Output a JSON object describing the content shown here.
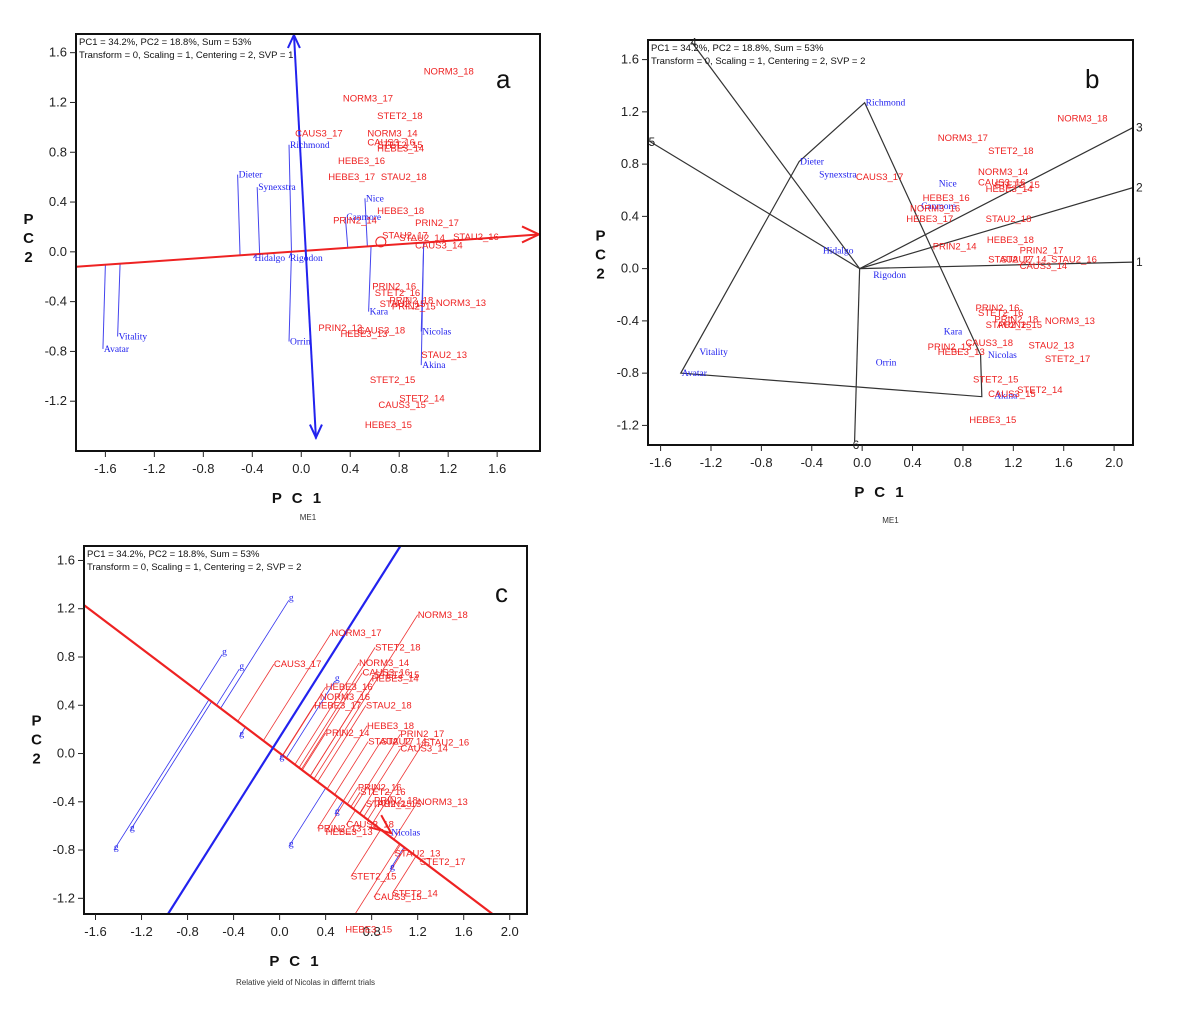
{
  "figure": {
    "common_header_line1": "PC1 = 34.2%, PC2 = 18.8%, Sum = 53%",
    "colors": {
      "environment": "#ee2222",
      "genotype": "#2222ee",
      "axis_vector_a": "#2222ee",
      "polygon": "#333333",
      "aec_abscissa": "#ee2222",
      "aec_ordinate": "#2222ee"
    }
  },
  "chart_data": [
    {
      "type": "scatter",
      "panel": "a",
      "header_line1": "PC1 = 34.2%, PC2 = 18.8%, Sum = 53%",
      "header_line2": "Transform = 0, Scaling = 1, Centering = 2, SVP = 1",
      "xlabel": "P C 1",
      "ylabel": "P C 2",
      "caption": "ME1",
      "xlim": [
        -1.84,
        1.95
      ],
      "ylim": [
        -1.6,
        1.75
      ],
      "xticks": [
        "-1.6",
        "-1.2",
        "-0.8",
        "-0.4",
        "0.0",
        "0.4",
        "0.8",
        "1.2",
        "1.6"
      ],
      "yticks": [
        "1.6",
        "1.2",
        "0.8",
        "0.4",
        "0.0",
        "-0.4",
        "-0.8",
        "-1.2"
      ],
      "xtick_values": [
        -1.6,
        -1.2,
        -0.8,
        -0.4,
        0.0,
        0.4,
        0.8,
        1.2,
        1.6
      ],
      "ytick_values": [
        1.6,
        1.2,
        0.8,
        0.4,
        0.0,
        -0.4,
        -0.8,
        -1.2
      ],
      "genotypes": [
        {
          "name": "Dieter",
          "x": -0.52,
          "y": 0.62
        },
        {
          "name": "Synexstra",
          "x": -0.36,
          "y": 0.52
        },
        {
          "name": "Hidalgo",
          "x": -0.39,
          "y": -0.05
        },
        {
          "name": "Richmond",
          "x": -0.1,
          "y": 0.86
        },
        {
          "name": "Nice",
          "x": 0.52,
          "y": 0.43
        },
        {
          "name": "Canmore",
          "x": 0.36,
          "y": 0.28
        },
        {
          "name": "Rigodon",
          "x": -0.1,
          "y": -0.05
        },
        {
          "name": "Orrin",
          "x": -0.1,
          "y": -0.72
        },
        {
          "name": "Kara",
          "x": 0.55,
          "y": -0.48
        },
        {
          "name": "Nicolas",
          "x": 0.98,
          "y": -0.64
        },
        {
          "name": "Akina",
          "x": 0.98,
          "y": -0.91
        },
        {
          "name": "Vitality",
          "x": -1.5,
          "y": -0.68
        },
        {
          "name": "Avatar",
          "x": -1.62,
          "y": -0.78
        }
      ],
      "environments": [
        {
          "name": "NORM3_18",
          "x": 1.0,
          "y": 1.45
        },
        {
          "name": "NORM3_17",
          "x": 0.34,
          "y": 1.23
        },
        {
          "name": "STET2_18",
          "x": 0.62,
          "y": 1.09
        },
        {
          "name": "CAUS3_17",
          "x": -0.05,
          "y": 0.95
        },
        {
          "name": "NORM3_14",
          "x": 0.54,
          "y": 0.95
        },
        {
          "name": "CAUS3_16",
          "x": 0.54,
          "y": 0.88
        },
        {
          "name": "STET2_15",
          "x": 0.62,
          "y": 0.86
        },
        {
          "name": "HEBE3_14",
          "x": 0.62,
          "y": 0.83
        },
        {
          "name": "HEBE3_16",
          "x": 0.3,
          "y": 0.73
        },
        {
          "name": "HEBE3_17",
          "x": 0.22,
          "y": 0.6
        },
        {
          "name": "STAU2_18",
          "x": 0.65,
          "y": 0.6
        },
        {
          "name": "HEBE3_18",
          "x": 0.62,
          "y": 0.33
        },
        {
          "name": "PRIN2_14",
          "x": 0.26,
          "y": 0.25
        },
        {
          "name": "PRIN2_17",
          "x": 0.93,
          "y": 0.23
        },
        {
          "name": "STAU2_17",
          "x": 0.66,
          "y": 0.13
        },
        {
          "name": "STAU2_14",
          "x": 0.8,
          "y": 0.11
        },
        {
          "name": "STAU2_16",
          "x": 1.24,
          "y": 0.12
        },
        {
          "name": "CAUS3_14",
          "x": 0.93,
          "y": 0.05
        },
        {
          "name": "PRIN2_16",
          "x": 0.58,
          "y": -0.28
        },
        {
          "name": "STET2_16",
          "x": 0.6,
          "y": -0.33
        },
        {
          "name": "PRIN2_18",
          "x": 0.72,
          "y": -0.39
        },
        {
          "name": "STAU2_15",
          "x": 0.64,
          "y": -0.42
        },
        {
          "name": "PRIN2_15",
          "x": 0.74,
          "y": -0.44
        },
        {
          "name": "NORM3_13",
          "x": 1.1,
          "y": -0.41
        },
        {
          "name": "PRIN2_13",
          "x": 0.14,
          "y": -0.61
        },
        {
          "name": "CAUS3_18",
          "x": 0.46,
          "y": -0.63
        },
        {
          "name": "HEBE3_13",
          "x": 0.32,
          "y": -0.66
        },
        {
          "name": "STAU2_13",
          "x": 0.98,
          "y": -0.83
        },
        {
          "name": "STET2_15b",
          "label": "STET2_15",
          "x": 0.56,
          "y": -1.03
        },
        {
          "name": "STET2_14",
          "x": 0.8,
          "y": -1.18
        },
        {
          "name": "CAUS3_15",
          "x": 0.63,
          "y": -1.23
        },
        {
          "name": "HEBE3_15",
          "x": 0.52,
          "y": -1.39
        }
      ],
      "aec_axis": {
        "from": [
          -1.84,
          -0.12
        ],
        "to": [
          1.95,
          0.14
        ]
      },
      "vertical_vector": {
        "from": [
          0.12,
          -1.5
        ],
        "to": [
          -0.06,
          1.75
        ]
      }
    },
    {
      "type": "scatter",
      "panel": "b",
      "header_line1": "PC1 = 34.2%, PC2 = 18.8%, Sum = 53%",
      "header_line2": "Transform = 0, Scaling = 1, Centering = 2, SVP = 2",
      "xlabel": "P C 1",
      "ylabel": "P C 2",
      "caption": "ME1",
      "xlim": [
        -1.7,
        2.15
      ],
      "ylim": [
        -1.35,
        1.75
      ],
      "xticks": [
        "-1.6",
        "-1.2",
        "-0.8",
        "-0.4",
        "0.0",
        "0.4",
        "0.8",
        "1.2",
        "1.6",
        "2.0"
      ],
      "yticks": [
        "1.6",
        "1.2",
        "0.8",
        "0.4",
        "0.0",
        "-0.4",
        "-0.8",
        "-1.2"
      ],
      "xtick_values": [
        -1.6,
        -1.2,
        -0.8,
        -0.4,
        0.0,
        0.4,
        0.8,
        1.2,
        1.6,
        2.0
      ],
      "ytick_values": [
        1.6,
        1.2,
        0.8,
        0.4,
        0.0,
        -0.4,
        -0.8,
        -1.2
      ],
      "polygon_vertices": [
        {
          "name": "Richmond",
          "x": 0.02,
          "y": 1.27
        },
        {
          "name": "Dieter",
          "x": -0.5,
          "y": 0.82
        },
        {
          "name": "Avatar",
          "x": -1.44,
          "y": -0.8
        },
        {
          "name": "Akina",
          "x": 0.95,
          "y": -0.98
        },
        {
          "name": "Nicolas",
          "x": 0.94,
          "y": -0.66
        }
      ],
      "sector_rays": [
        {
          "label": "1",
          "x": 2.15,
          "y": 0.05
        },
        {
          "label": "2",
          "x": 2.15,
          "y": 0.62
        },
        {
          "label": "3",
          "x": 2.15,
          "y": 1.08
        },
        {
          "label": "4",
          "x": -1.35,
          "y": 1.73
        },
        {
          "label": "5",
          "x": -1.68,
          "y": 0.97
        },
        {
          "label": "6",
          "x": -0.06,
          "y": -1.32
        }
      ],
      "origin": {
        "x": -0.02,
        "y": 0.0
      },
      "genotypes": [
        {
          "name": "Richmond",
          "x": 0.02,
          "y": 1.27
        },
        {
          "name": "Dieter",
          "x": -0.5,
          "y": 0.82
        },
        {
          "name": "Synexstra",
          "x": -0.35,
          "y": 0.72
        },
        {
          "name": "Nice",
          "x": 0.6,
          "y": 0.65
        },
        {
          "name": "Canmore",
          "x": 0.46,
          "y": 0.48
        },
        {
          "name": "Hidalgo",
          "x": -0.32,
          "y": 0.14
        },
        {
          "name": "Rigodon",
          "x": 0.08,
          "y": -0.05
        },
        {
          "name": "Kara",
          "x": 0.64,
          "y": -0.48
        },
        {
          "name": "Nicolas",
          "x": 0.99,
          "y": -0.66
        },
        {
          "name": "Orrin",
          "x": 0.1,
          "y": -0.72
        },
        {
          "name": "Vitality",
          "x": -1.3,
          "y": -0.64
        },
        {
          "name": "Avatar",
          "x": -1.44,
          "y": -0.8
        },
        {
          "name": "Akina",
          "x": 1.04,
          "y": -0.97
        }
      ],
      "environments": [
        {
          "name": "NORM3_18",
          "x": 1.55,
          "y": 1.15
        },
        {
          "name": "NORM3_17",
          "x": 0.6,
          "y": 1.0
        },
        {
          "name": "STET2_18",
          "x": 1.0,
          "y": 0.9
        },
        {
          "name": "CAUS3_17",
          "x": -0.05,
          "y": 0.7
        },
        {
          "name": "NORM3_14",
          "x": 0.92,
          "y": 0.74
        },
        {
          "name": "CAUS3_16",
          "x": 0.92,
          "y": 0.66
        },
        {
          "name": "STET2_15",
          "x": 1.05,
          "y": 0.64
        },
        {
          "name": "HEBE3_14",
          "x": 0.98,
          "y": 0.61
        },
        {
          "name": "HEBE3_16",
          "x": 0.48,
          "y": 0.54
        },
        {
          "name": "NORM3_16",
          "x": 0.38,
          "y": 0.46
        },
        {
          "name": "HEBE3_17",
          "x": 0.35,
          "y": 0.38
        },
        {
          "name": "STAU2_18",
          "x": 0.98,
          "y": 0.38
        },
        {
          "name": "HEBE3_18",
          "x": 0.99,
          "y": 0.22
        },
        {
          "name": "PRIN2_14",
          "x": 0.56,
          "y": 0.17
        },
        {
          "name": "PRIN2_17",
          "x": 1.25,
          "y": 0.14
        },
        {
          "name": "STAU2_17",
          "x": 1.0,
          "y": 0.07
        },
        {
          "name": "STAU2_14",
          "x": 1.1,
          "y": 0.07
        },
        {
          "name": "STAU2_16",
          "x": 1.5,
          "y": 0.07
        },
        {
          "name": "CAUS3_14",
          "x": 1.25,
          "y": 0.02
        },
        {
          "name": "PRIN2_16",
          "x": 0.9,
          "y": -0.3
        },
        {
          "name": "STET2_16",
          "x": 0.92,
          "y": -0.34
        },
        {
          "name": "PRIN2_18",
          "x": 1.05,
          "y": -0.39
        },
        {
          "name": "STAU2_15",
          "x": 0.98,
          "y": -0.43
        },
        {
          "name": "PRIN2_15",
          "x": 1.08,
          "y": -0.43
        },
        {
          "name": "NORM3_13",
          "x": 1.45,
          "y": -0.4
        },
        {
          "name": "PRIN2_13",
          "x": 0.52,
          "y": -0.6
        },
        {
          "name": "CAUS3_18",
          "x": 0.82,
          "y": -0.57
        },
        {
          "name": "HEBE3_13",
          "x": 0.6,
          "y": -0.64
        },
        {
          "name": "STAU2_13",
          "x": 1.32,
          "y": -0.59
        },
        {
          "name": "STET2_17",
          "x": 1.45,
          "y": -0.69
        },
        {
          "name": "STET2_15b",
          "label": "STET2_15",
          "x": 0.88,
          "y": -0.85
        },
        {
          "name": "STET2_14",
          "x": 1.23,
          "y": -0.93
        },
        {
          "name": "CAUS3_15",
          "x": 1.0,
          "y": -0.96
        },
        {
          "name": "HEBE3_15",
          "x": 0.85,
          "y": -1.16
        }
      ]
    },
    {
      "type": "scatter",
      "panel": "c",
      "header_line1": "PC1 = 34.2%, PC2 = 18.8%, Sum = 53%",
      "header_line2": "Transform = 0, Scaling = 1, Centering = 2, SVP = 2",
      "xlabel": "P C 1",
      "ylabel": "P C 2",
      "caption": "Relative yield of Nicolas in differnt trials",
      "xlim": [
        -1.7,
        2.15
      ],
      "ylim": [
        -1.33,
        1.72
      ],
      "xticks": [
        "-1.6",
        "-1.2",
        "-0.8",
        "-0.4",
        "0.0",
        "0.4",
        "0.8",
        "1.2",
        "1.6",
        "2.0"
      ],
      "yticks": [
        "1.6",
        "1.2",
        "0.8",
        "0.4",
        "0.0",
        "-0.4",
        "-0.8",
        "-1.2"
      ],
      "xtick_values": [
        -1.6,
        -1.2,
        -0.8,
        -0.4,
        0.0,
        0.4,
        0.8,
        1.2,
        1.6,
        2.0
      ],
      "ytick_values": [
        1.6,
        1.2,
        0.8,
        0.4,
        0.0,
        -0.4,
        -0.8,
        -1.2
      ],
      "target_genotype": "Nicolas",
      "aec_abscissa": {
        "from": [
          -1.7,
          1.23
        ],
        "to": [
          1.85,
          -1.33
        ]
      },
      "aec_ordinate": {
        "from": [
          -0.97,
          -1.33
        ],
        "to": [
          1.05,
          1.72
        ]
      },
      "arrow_at": {
        "x": 0.97,
        "y": -0.66
      },
      "genotype_markers": [
        {
          "name": "g1",
          "label": "g",
          "x": 0.08,
          "y": 1.27
        },
        {
          "name": "g2",
          "label": "g",
          "x": -0.5,
          "y": 0.82
        },
        {
          "name": "g3",
          "label": "g",
          "x": -0.35,
          "y": 0.7
        },
        {
          "name": "g4",
          "label": "g",
          "x": -0.35,
          "y": 0.14
        },
        {
          "name": "g5",
          "label": "g",
          "x": 0.0,
          "y": -0.05
        },
        {
          "name": "g6",
          "label": "g",
          "x": 0.48,
          "y": 0.6
        },
        {
          "name": "g7",
          "label": "g",
          "x": 0.48,
          "y": -0.5
        },
        {
          "name": "g8",
          "label": "g",
          "x": -1.3,
          "y": -0.64
        },
        {
          "name": "g9",
          "label": "g",
          "x": -1.44,
          "y": -0.8
        },
        {
          "name": "g10",
          "label": "g",
          "x": 0.08,
          "y": -0.77
        },
        {
          "name": "g11",
          "label": "g",
          "x": 0.96,
          "y": -0.96
        },
        {
          "name": "Nicolas",
          "label": "Nicolas",
          "x": 0.97,
          "y": -0.68
        }
      ],
      "environments": [
        {
          "name": "NORM3_18",
          "x": 1.2,
          "y": 1.15
        },
        {
          "name": "NORM3_17",
          "x": 0.45,
          "y": 1.0
        },
        {
          "name": "STET2_18",
          "x": 0.83,
          "y": 0.88
        },
        {
          "name": "CAUS3_17",
          "x": -0.05,
          "y": 0.74
        },
        {
          "name": "NORM3_14",
          "x": 0.69,
          "y": 0.75
        },
        {
          "name": "CAUS3_16",
          "x": 0.72,
          "y": 0.67
        },
        {
          "name": "STET2_15",
          "x": 0.82,
          "y": 0.65
        },
        {
          "name": "HEBE3_14",
          "x": 0.8,
          "y": 0.62
        },
        {
          "name": "HEBE3_16",
          "x": 0.4,
          "y": 0.55
        },
        {
          "name": "NORM3_16",
          "x": 0.35,
          "y": 0.47
        },
        {
          "name": "HEBE3_17",
          "x": 0.3,
          "y": 0.4
        },
        {
          "name": "STAU2_18",
          "x": 0.75,
          "y": 0.4
        },
        {
          "name": "HEBE3_18",
          "x": 0.76,
          "y": 0.23
        },
        {
          "name": "PRIN2_14",
          "x": 0.4,
          "y": 0.17
        },
        {
          "name": "PRIN2_17",
          "x": 1.05,
          "y": 0.16
        },
        {
          "name": "STAU2_17",
          "x": 0.77,
          "y": 0.1
        },
        {
          "name": "STAU2_14",
          "x": 0.88,
          "y": 0.1
        },
        {
          "name": "STAU2_16",
          "x": 1.25,
          "y": 0.09
        },
        {
          "name": "CAUS3_14",
          "x": 1.05,
          "y": 0.04
        },
        {
          "name": "PRIN2_16",
          "x": 0.68,
          "y": -0.28
        },
        {
          "name": "STET2_16",
          "x": 0.7,
          "y": -0.32
        },
        {
          "name": "PRIN2_18",
          "x": 0.82,
          "y": -0.39
        },
        {
          "name": "STAU2_15",
          "x": 0.75,
          "y": -0.42
        },
        {
          "name": "PRIN2_15",
          "x": 0.85,
          "y": -0.42
        },
        {
          "name": "NORM3_13",
          "x": 1.2,
          "y": -0.4
        },
        {
          "name": "PRIN2_13",
          "x": 0.33,
          "y": -0.62
        },
        {
          "name": "CAUS3_18",
          "x": 0.58,
          "y": -0.59
        },
        {
          "name": "HEBE3_13",
          "x": 0.4,
          "y": -0.65
        },
        {
          "name": "STAU2_13",
          "x": 1.0,
          "y": -0.83
        },
        {
          "name": "STET2_17",
          "x": 1.22,
          "y": -0.9
        },
        {
          "name": "STET2_15b",
          "label": "STET2_15",
          "x": 0.62,
          "y": -1.02
        },
        {
          "name": "STET2_14",
          "x": 0.98,
          "y": -1.16
        },
        {
          "name": "CAUS3_15",
          "x": 0.82,
          "y": -1.19
        },
        {
          "name": "HEBE3_15",
          "x": 0.57,
          "y": -1.46
        }
      ]
    }
  ]
}
